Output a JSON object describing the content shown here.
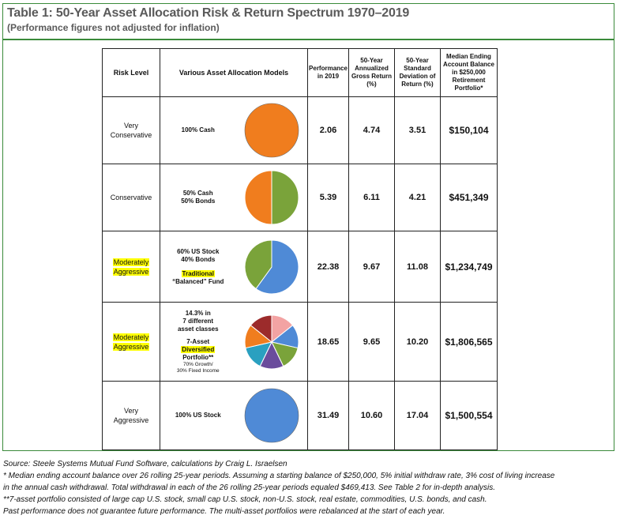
{
  "header": {
    "title": "Table 1: 50-Year Asset Allocation Risk & Return Spectrum 1970–2019",
    "subtitle": "(Performance figures not adjusted for inflation)"
  },
  "table": {
    "columns": {
      "risk": "Risk Level",
      "models": "Various Asset Allocation Models",
      "perf": [
        "Performance",
        "in 2019"
      ],
      "gross": [
        "50-Year",
        "Annualized",
        "Gross Return",
        "(%)"
      ],
      "std": [
        "50-Year",
        "Standard",
        "Deviation of",
        "Return (%)"
      ],
      "bal": [
        "Median Ending",
        "Account Balance",
        "in $250,000",
        "Retirement",
        "Portfolio*"
      ]
    },
    "rows": [
      {
        "risk": [
          "Very",
          "Conservative"
        ],
        "model": [
          "100% Cash"
        ],
        "perf": "2.06",
        "gross": "4.74",
        "std": "3.51",
        "bal": "$150,104",
        "pie": "pie-100-cash"
      },
      {
        "risk": [
          "Conservative"
        ],
        "model": [
          "50% Cash",
          "50% Bonds"
        ],
        "perf": "5.39",
        "gross": "6.11",
        "std": "4.21",
        "bal": "$451,349",
        "pie": "pie-50-50"
      },
      {
        "risk": [
          "Moderately",
          "Aggressive"
        ],
        "model": [
          "60% US Stock",
          "40% Bonds"
        ],
        "model_hl": [
          "Traditional",
          "“Balanced” Fund"
        ],
        "perf": "22.38",
        "gross": "9.67",
        "std": "11.08",
        "bal": "$1,234,749",
        "pie": "pie-60-40"
      },
      {
        "risk": [
          "Moderately",
          "Aggressive"
        ],
        "model": [
          "14.3% in",
          "7 different",
          "asset classes"
        ],
        "model2": [
          "7-Asset",
          "Diversified",
          "Portfolio**"
        ],
        "model_small": [
          "70% Growth/",
          "30% Fixed Income"
        ],
        "perf": "18.65",
        "gross": "9.65",
        "std": "10.20",
        "bal": "$1,806,565",
        "pie": "pie-7-asset"
      },
      {
        "risk": [
          "Very",
          "Aggressive"
        ],
        "model": [
          "100% US Stock"
        ],
        "perf": "31.49",
        "gross": "10.60",
        "std": "17.04",
        "bal": "$1,500,554",
        "pie": "pie-100-stock"
      }
    ]
  },
  "colors": {
    "cash": "#f07d1e",
    "bonds": "#7aa33a",
    "us_stock": "#4f8ad6",
    "highlight": "#ffff00",
    "frame": "#3a8a3a",
    "seven": [
      "#f3a3a3",
      "#4f8ad6",
      "#7aa33a",
      "#6a4c9c",
      "#2aa0c0",
      "#f07d1e",
      "#9c2b2b"
    ]
  },
  "notes": [
    "Source: Steele Systems Mutual Fund Software, calculations by Craig L. Israelsen",
    "* Median ending account balance over 26 rolling 25-year periods. Assuming a starting balance of $250,000, 5% initial withdraw rate, 3% cost of living increase",
    "in the annual cash withdrawal. Total withdrawal in each of the 26 rolling 25-year periods equaled $469,413. See Table 2 for in-depth analysis.",
    "**7-asset portfolio consisted of large cap U.S. stock, small cap U.S. stock, non-U.S. stock, real estate, commodities, U.S. bonds, and cash.",
    "Past performance does not guarantee future performance. The multi-asset portfolios were rebalanced at the start of each year."
  ]
}
